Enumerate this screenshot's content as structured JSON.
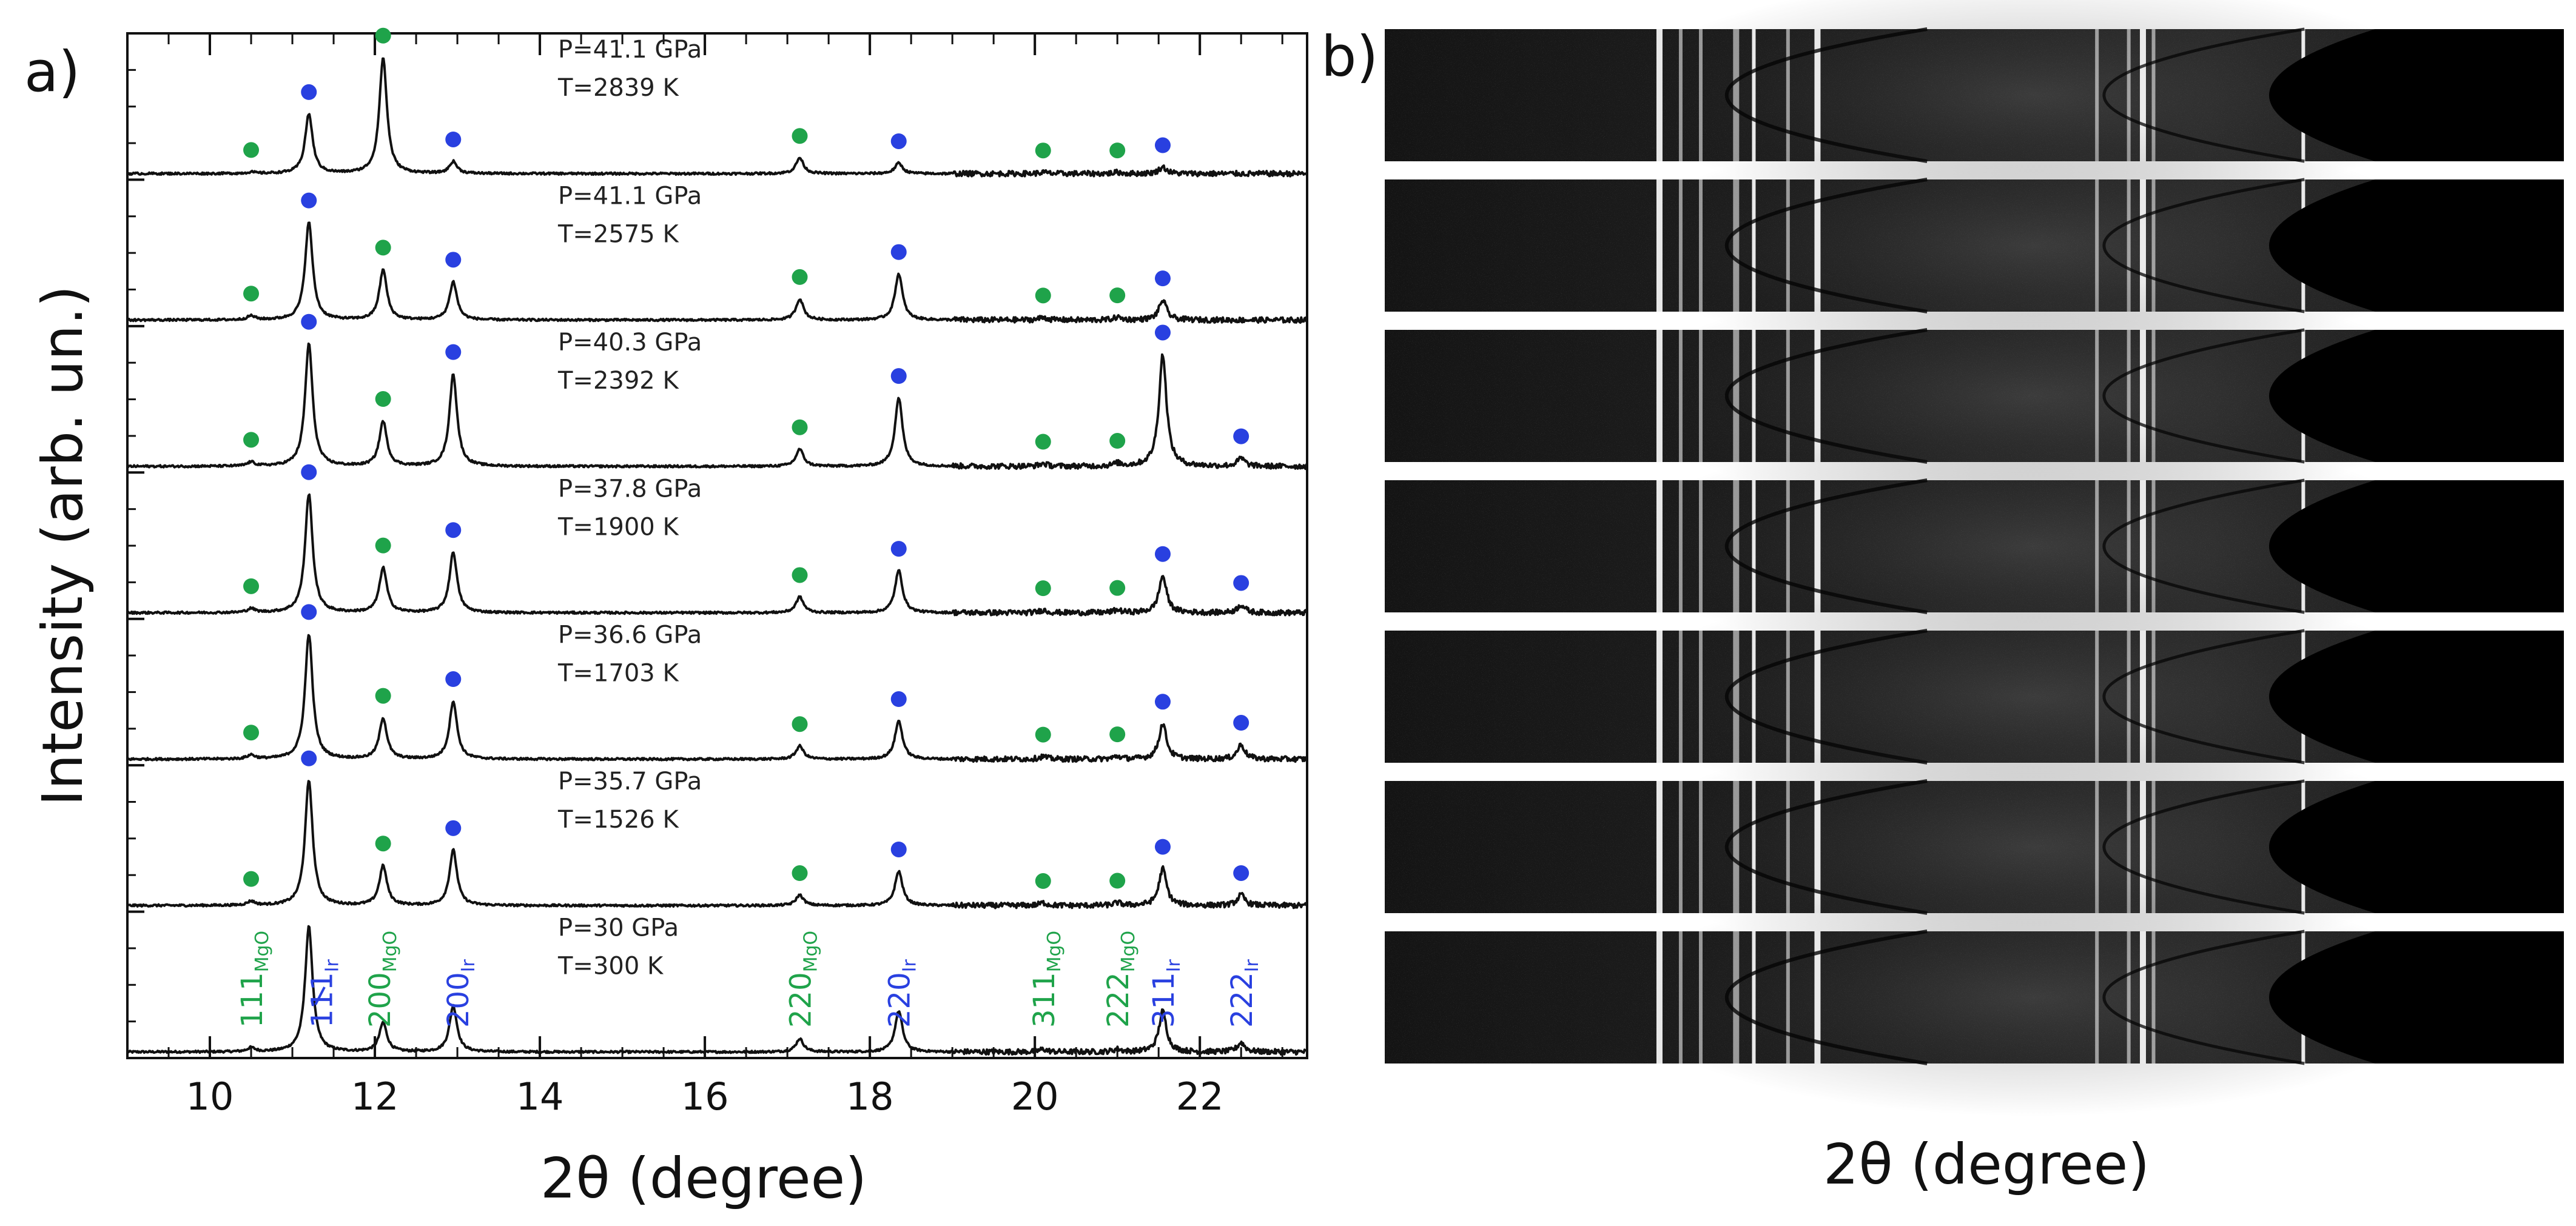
{
  "panel_a_label": "a)",
  "panel_b_label": "b)",
  "colors": {
    "mgo": "#1fa34a",
    "ir": "#2940e0",
    "trace": "#111111",
    "frame": "#111111"
  },
  "chart_data": [
    {
      "type": "line",
      "title": "",
      "xlabel": "2θ (degree)",
      "ylabel": "Intensity (arb. un.)",
      "xlim": [
        9.0,
        23.3
      ],
      "xticks": [
        10,
        12,
        14,
        16,
        18,
        20,
        22
      ],
      "xtick_labels": [
        "10",
        "12",
        "14",
        "16",
        "18",
        "20",
        "22"
      ],
      "minor_tick_step": 0.5,
      "mgo_peaks": [
        10.5,
        12.1,
        17.15,
        20.1,
        21.0
      ],
      "ir_peaks": [
        11.2,
        12.95,
        18.35,
        21.55,
        22.5
      ],
      "peak_width": 0.055,
      "series": [
        {
          "name": "P=30 GPa T=300 K",
          "pressure": "P=30 GPa",
          "temperature": "T=300 K",
          "mgo_heights": [
            0.03,
            0.22,
            0.1,
            0.02,
            0.02
          ],
          "ir_heights": [
            0.95,
            0.35,
            0.31,
            0.31,
            0.07
          ],
          "mgo_dots": false,
          "ir_dots": false
        },
        {
          "name": "P=35.7 GPa T=1526 K",
          "pressure": "P=35.7 GPa",
          "temperature": "T=1526 K",
          "mgo_heights": [
            0.03,
            0.3,
            0.08,
            0.02,
            0.02
          ],
          "ir_heights": [
            0.95,
            0.42,
            0.26,
            0.28,
            0.08
          ],
          "mgo_dots": true,
          "ir_dots": true
        },
        {
          "name": "P=36.6 GPa T=1703 K",
          "pressure": "P=36.6 GPa",
          "temperature": "T=1703 K",
          "mgo_heights": [
            0.03,
            0.31,
            0.1,
            0.02,
            0.02
          ],
          "ir_heights": [
            0.95,
            0.44,
            0.29,
            0.27,
            0.11
          ],
          "mgo_dots": true,
          "ir_dots": true
        },
        {
          "name": "P=37.8 GPa T=1900 K",
          "pressure": "P=37.8 GPa",
          "temperature": "T=1900 K",
          "mgo_heights": [
            0.03,
            0.34,
            0.12,
            0.02,
            0.02
          ],
          "ir_heights": [
            0.9,
            0.46,
            0.32,
            0.28,
            0.06
          ],
          "mgo_dots": true,
          "ir_dots": true
        },
        {
          "name": "P=40.3 GPa T=2392 K",
          "pressure": "P=40.3 GPa",
          "temperature": "T=2392 K",
          "mgo_heights": [
            0.03,
            0.34,
            0.13,
            0.02,
            0.02
          ],
          "ir_heights": [
            0.93,
            0.7,
            0.52,
            0.85,
            0.06
          ],
          "mgo_dots": true,
          "ir_dots": true
        },
        {
          "name": "P=41.1 GPa T=2575 K",
          "pressure": "P=41.1 GPa",
          "temperature": "T=2575 K",
          "mgo_heights": [
            0.03,
            0.38,
            0.16,
            0.02,
            0.02
          ],
          "ir_heights": [
            0.74,
            0.29,
            0.35,
            0.15,
            0.0
          ],
          "mgo_dots": true,
          "ir_dots": true
        },
        {
          "name": "P=41.1 GPa T=2839 K",
          "pressure": "P=41.1 GPa",
          "temperature": "T=2839 K",
          "mgo_heights": [
            0.01,
            0.88,
            0.12,
            0.01,
            0.01
          ],
          "ir_heights": [
            0.45,
            0.09,
            0.08,
            0.05,
            0.0
          ],
          "mgo_dots": true,
          "ir_dots": true
        }
      ],
      "peak_annotations": [
        {
          "main": "111",
          "sub": "MgO",
          "phase": "mgo"
        },
        {
          "main": "111",
          "sub": "Ir",
          "phase": "ir"
        },
        {
          "main": "200",
          "sub": "MgO",
          "phase": "mgo"
        },
        {
          "main": "200",
          "sub": "Ir",
          "phase": "ir"
        },
        {
          "main": "220",
          "sub": "MgO",
          "phase": "mgo"
        },
        {
          "main": "220",
          "sub": "Ir",
          "phase": "ir"
        },
        {
          "main": "311",
          "sub": "MgO",
          "phase": "mgo"
        },
        {
          "main": "222",
          "sub": "MgO",
          "phase": "mgo"
        },
        {
          "main": "311",
          "sub": "Ir",
          "phase": "ir"
        },
        {
          "main": "222",
          "sub": "Ir",
          "phase": "ir"
        }
      ]
    },
    {
      "type": "heatmap",
      "title": "",
      "xlabel": "2θ (degree)",
      "n_strips": 7,
      "description_lines": "diffraction images"
    }
  ]
}
